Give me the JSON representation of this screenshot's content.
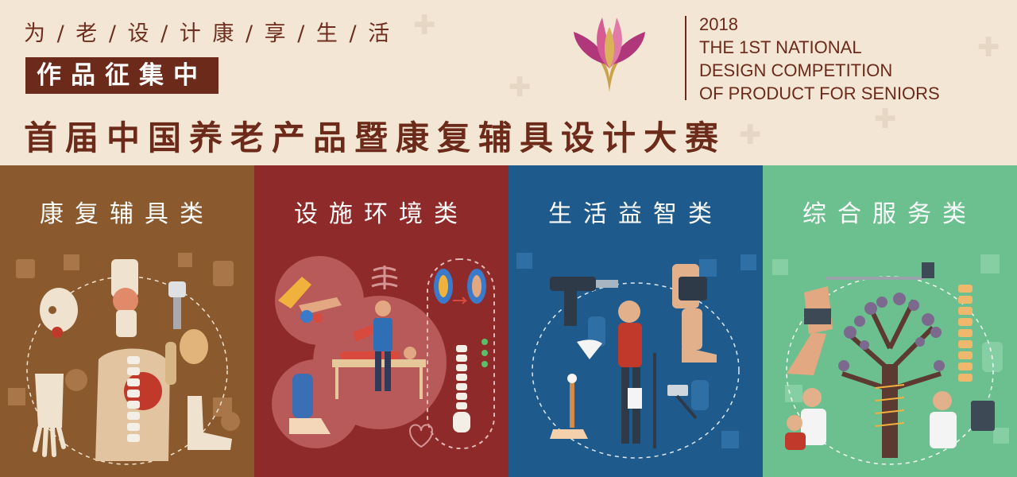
{
  "header": {
    "slogan": "为 / 老 / 设 / 计   康 / 享 / 生 / 活",
    "call_label": "作品征集中",
    "main_title": "首届中国养老产品暨康复辅具设计大赛",
    "logo_icon": "lotus-logo-icon",
    "english_title": {
      "year": "2018",
      "line1": "THE 1ST NATIONAL",
      "line2": "DESIGN COMPETITION",
      "line3": "OF PRODUCT FOR SENIORS"
    }
  },
  "panels": [
    {
      "title": "康复辅具类",
      "color": "#8a5a2e",
      "icon": "rehab-aids-illustration"
    },
    {
      "title": "设施环境类",
      "color": "#8e2b2a",
      "icon": "facility-environment-illustration"
    },
    {
      "title": "生活益智类",
      "color": "#1f5a8c",
      "icon": "life-puzzle-illustration"
    },
    {
      "title": "综合服务类",
      "color": "#6cbf8f",
      "icon": "comprehensive-service-illustration"
    }
  ],
  "colors": {
    "header_bg": "#f4e6d4",
    "brand_brown": "#6b2a1a"
  }
}
